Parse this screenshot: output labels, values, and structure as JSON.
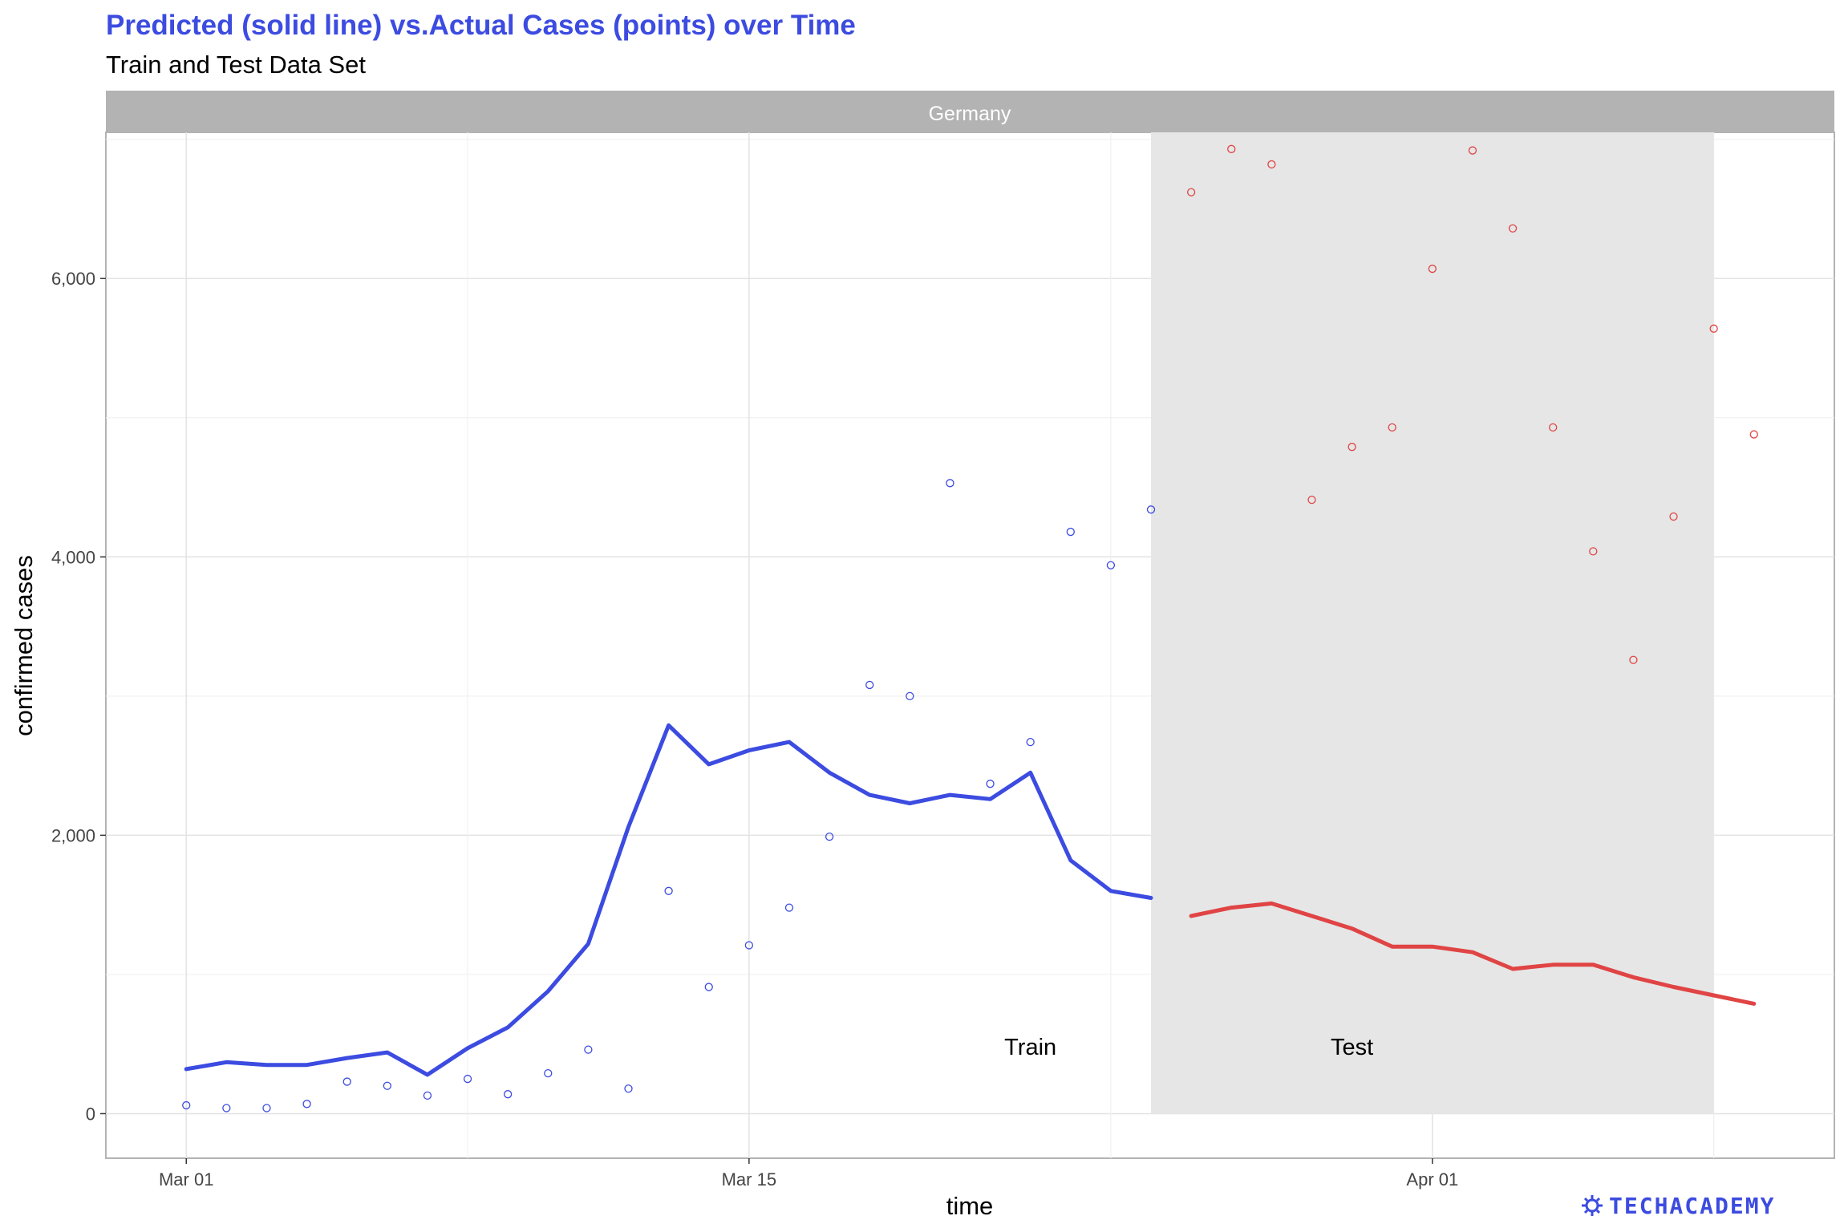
{
  "chart_data": {
    "type": "line",
    "title": "Predicted (solid line) vs.Actual Cases (points) over Time",
    "subtitle": "Train and Test Data Set",
    "facet_label": "Germany",
    "xlabel": "time",
    "ylabel": "confirmed cases",
    "x_ticks": [
      "Mar 01",
      "Mar 15",
      "Apr 01"
    ],
    "y_ticks": [
      "0",
      "2,000",
      "4,000",
      "6,000"
    ],
    "ylim": [
      -320,
      7050
    ],
    "grid": true,
    "annotations": [
      {
        "label": "Train",
        "x": "2020-03-22",
        "y": 480
      },
      {
        "label": "Test",
        "x": "2020-03-30",
        "y": 480
      }
    ],
    "test_region": {
      "x_start": "2020-03-25",
      "x_end": "2020-04-08"
    },
    "colors": {
      "train": "#3c4be0",
      "test": "#e04444",
      "test_band": "#e6e6e6",
      "strip": "#b3b3b3"
    },
    "series": [
      {
        "set": "Train",
        "kind": "predicted-line",
        "x": [
          "2020-03-01",
          "2020-03-02",
          "2020-03-03",
          "2020-03-04",
          "2020-03-05",
          "2020-03-06",
          "2020-03-07",
          "2020-03-08",
          "2020-03-09",
          "2020-03-10",
          "2020-03-11",
          "2020-03-12",
          "2020-03-13",
          "2020-03-14",
          "2020-03-15",
          "2020-03-16",
          "2020-03-17",
          "2020-03-18",
          "2020-03-19",
          "2020-03-20",
          "2020-03-21",
          "2020-03-22",
          "2020-03-23",
          "2020-03-24",
          "2020-03-25"
        ],
        "values": [
          320,
          370,
          350,
          350,
          400,
          440,
          280,
          470,
          620,
          880,
          1220,
          2060,
          2790,
          2510,
          2610,
          2670,
          2450,
          2290,
          2230,
          2290,
          2260,
          2450,
          1820,
          1600,
          1550
        ]
      },
      {
        "set": "Train",
        "kind": "actual-points",
        "x": [
          "2020-03-01",
          "2020-03-02",
          "2020-03-03",
          "2020-03-04",
          "2020-03-05",
          "2020-03-06",
          "2020-03-07",
          "2020-03-08",
          "2020-03-09",
          "2020-03-10",
          "2020-03-11",
          "2020-03-12",
          "2020-03-13",
          "2020-03-14",
          "2020-03-15",
          "2020-03-16",
          "2020-03-17",
          "2020-03-18",
          "2020-03-19",
          "2020-03-20",
          "2020-03-21",
          "2020-03-22",
          "2020-03-23",
          "2020-03-24",
          "2020-03-25"
        ],
        "values": [
          60,
          40,
          40,
          70,
          230,
          200,
          130,
          250,
          140,
          290,
          460,
          180,
          1600,
          910,
          1210,
          1480,
          1990,
          3080,
          3000,
          4530,
          2370,
          2670,
          4180,
          3940,
          4340
        ]
      },
      {
        "set": "Test",
        "kind": "predicted-line",
        "x": [
          "2020-03-26",
          "2020-03-27",
          "2020-03-28",
          "2020-03-29",
          "2020-03-30",
          "2020-03-31",
          "2020-04-01",
          "2020-04-02",
          "2020-04-03",
          "2020-04-04",
          "2020-04-05",
          "2020-04-06",
          "2020-04-07",
          "2020-04-08",
          "2020-04-09"
        ],
        "values": [
          1420,
          1480,
          1510,
          1420,
          1330,
          1200,
          1200,
          1160,
          1040,
          1070,
          1070,
          980,
          910,
          850,
          790
        ]
      },
      {
        "set": "Test",
        "kind": "actual-points",
        "x": [
          "2020-03-26",
          "2020-03-27",
          "2020-03-28",
          "2020-03-29",
          "2020-03-30",
          "2020-03-31",
          "2020-04-01",
          "2020-04-02",
          "2020-04-03",
          "2020-04-04",
          "2020-04-05",
          "2020-04-06",
          "2020-04-07",
          "2020-04-08",
          "2020-04-09"
        ],
        "values": [
          6620,
          6930,
          6820,
          4410,
          4790,
          4930,
          6070,
          6920,
          6360,
          4930,
          4040,
          3260,
          4290,
          5640,
          4880
        ]
      }
    ]
  },
  "branding": {
    "logo_text": "TECHACADEMY",
    "logo_icon": "virus-icon"
  }
}
